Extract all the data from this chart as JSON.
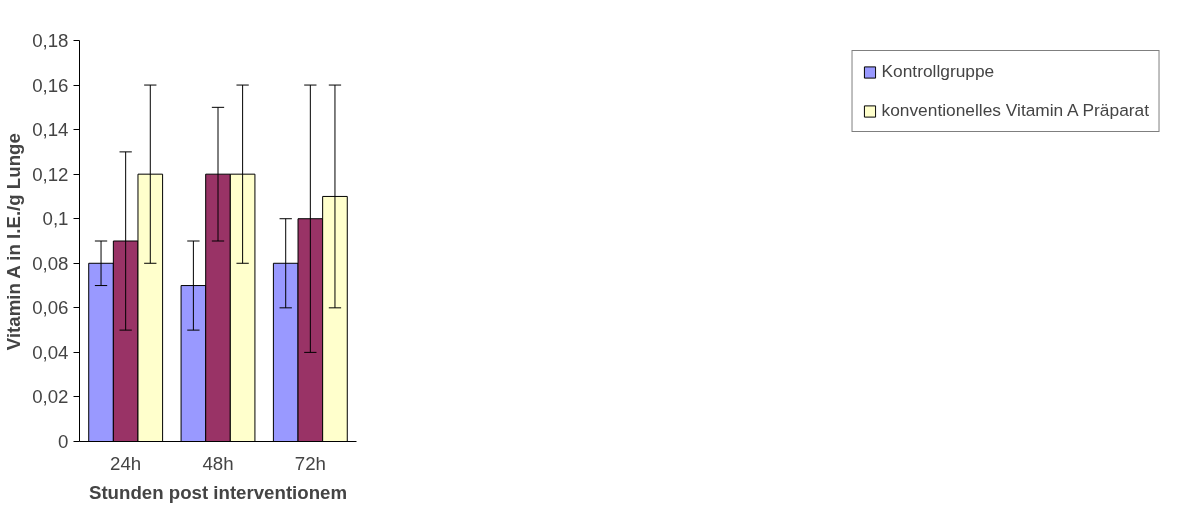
{
  "chart_data": {
    "type": "bar",
    "xlabel": "Stunden post interventionem",
    "ylabel": "Vitamin A in I.E./g Lunge",
    "categories": [
      "24h",
      "48h",
      "72h"
    ],
    "series": [
      {
        "name": "Kontrollgruppe",
        "color": "#9999ff",
        "values": [
          0.08,
          0.07,
          0.08
        ],
        "errors": [
          [
            0.07,
            0.09
          ],
          [
            0.05,
            0.09
          ],
          [
            0.06,
            0.1
          ]
        ]
      },
      {
        "color": "#993366",
        "values": [
          0.09,
          0.12,
          0.1
        ],
        "errors": [
          [
            0.05,
            0.13
          ],
          [
            0.09,
            0.15
          ],
          [
            0.04,
            0.16
          ]
        ]
      },
      {
        "name": "konventionelles Vitamin A Präparat",
        "color": "#ffffcc",
        "values": [
          0.12,
          0.12,
          0.11
        ],
        "errors": [
          [
            0.08,
            0.16
          ],
          [
            0.08,
            0.16
          ],
          [
            0.06,
            0.16
          ]
        ]
      }
    ],
    "ylim": [
      0,
      0.18
    ],
    "yticks": [
      {
        "value": 0,
        "label": "0"
      },
      {
        "value": 0.02,
        "label": "0,02"
      },
      {
        "value": 0.04,
        "label": "0,04"
      },
      {
        "value": 0.06,
        "label": "0,06"
      },
      {
        "value": 0.08,
        "label": "0,08"
      },
      {
        "value": 0.1,
        "label": "0,1"
      },
      {
        "value": 0.12,
        "label": "0,12"
      },
      {
        "value": 0.14,
        "label": "0,14"
      },
      {
        "value": 0.16,
        "label": "0,16"
      },
      {
        "value": 0.18,
        "label": "0,18"
      }
    ],
    "grid": false,
    "legend": "right"
  }
}
